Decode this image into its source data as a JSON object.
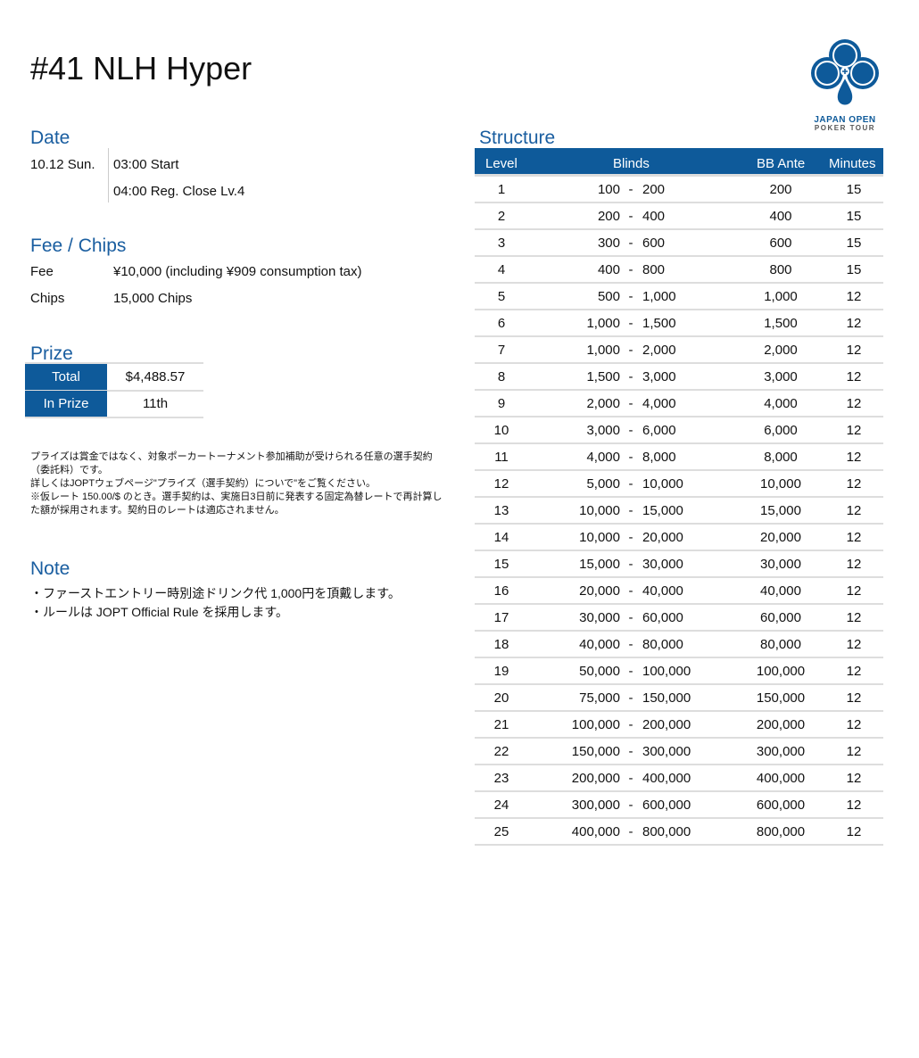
{
  "title": "#41 NLH Hyper",
  "logo": {
    "line1": "JAPAN OPEN",
    "line2": "POKER TOUR",
    "color": "#0e5a9a"
  },
  "date": {
    "heading": "Date",
    "day": "10.12 Sun.",
    "start": "03:00 Start",
    "reg_close": "04:00 Reg. Close Lv.4"
  },
  "fee": {
    "heading": "Fee / Chips",
    "fee_label": "Fee",
    "fee_value": "¥10,000 (including ¥909 consumption tax)",
    "chips_label": "Chips",
    "chips_value": "15,000 Chips"
  },
  "prize": {
    "heading": "Prize",
    "total_label": "Total",
    "total_value": "$4,488.57",
    "inprize_label": "In Prize",
    "inprize_value": "11th"
  },
  "prize_note": [
    "プライズは賞金ではなく、対象ポーカートーナメント参加補助が受けられる任意の選手契約（委託料）です。",
    "詳しくはJOPTウェブページ\"プライズ（選手契約）についで\"をご覧ください。",
    "※仮レート 150.00/$ のとき。選手契約は、実施日3日前に発表する固定為替レートで再計算した額が採用されます。契約日のレートは適応されません。"
  ],
  "note": {
    "heading": "Note",
    "items": [
      "・ファーストエントリー時別途ドリンク代  1,000円を頂戴します。",
      "・ルールは JOPT Official Rule を採用します。"
    ]
  },
  "structure": {
    "heading": "Structure",
    "columns": [
      "Level",
      "Blinds",
      "BB Ante",
      "Minutes"
    ],
    "rows": [
      [
        "1",
        "100",
        "200",
        "200",
        "15"
      ],
      [
        "2",
        "200",
        "400",
        "400",
        "15"
      ],
      [
        "3",
        "300",
        "600",
        "600",
        "15"
      ],
      [
        "4",
        "400",
        "800",
        "800",
        "15"
      ],
      [
        "5",
        "500",
        "1,000",
        "1,000",
        "12"
      ],
      [
        "6",
        "1,000",
        "1,500",
        "1,500",
        "12"
      ],
      [
        "7",
        "1,000",
        "2,000",
        "2,000",
        "12"
      ],
      [
        "8",
        "1,500",
        "3,000",
        "3,000",
        "12"
      ],
      [
        "9",
        "2,000",
        "4,000",
        "4,000",
        "12"
      ],
      [
        "10",
        "3,000",
        "6,000",
        "6,000",
        "12"
      ],
      [
        "11",
        "4,000",
        "8,000",
        "8,000",
        "12"
      ],
      [
        "12",
        "5,000",
        "10,000",
        "10,000",
        "12"
      ],
      [
        "13",
        "10,000",
        "15,000",
        "15,000",
        "12"
      ],
      [
        "14",
        "10,000",
        "20,000",
        "20,000",
        "12"
      ],
      [
        "15",
        "15,000",
        "30,000",
        "30,000",
        "12"
      ],
      [
        "16",
        "20,000",
        "40,000",
        "40,000",
        "12"
      ],
      [
        "17",
        "30,000",
        "60,000",
        "60,000",
        "12"
      ],
      [
        "18",
        "40,000",
        "80,000",
        "80,000",
        "12"
      ],
      [
        "19",
        "50,000",
        "100,000",
        "100,000",
        "12"
      ],
      [
        "20",
        "75,000",
        "150,000",
        "150,000",
        "12"
      ],
      [
        "21",
        "100,000",
        "200,000",
        "200,000",
        "12"
      ],
      [
        "22",
        "150,000",
        "300,000",
        "300,000",
        "12"
      ],
      [
        "23",
        "200,000",
        "400,000",
        "400,000",
        "12"
      ],
      [
        "24",
        "300,000",
        "600,000",
        "600,000",
        "12"
      ],
      [
        "25",
        "400,000",
        "800,000",
        "800,000",
        "12"
      ]
    ]
  }
}
